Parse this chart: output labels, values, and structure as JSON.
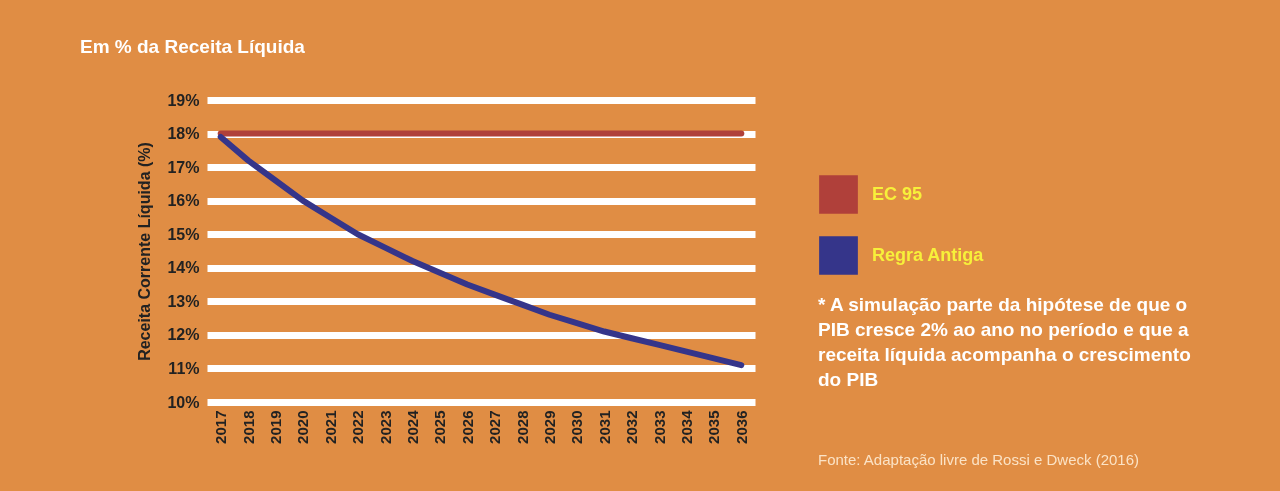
{
  "chart_data": {
    "type": "line",
    "title": "Em % da Receita Líquida",
    "ylabel": "Receita Corrente Líquida (%)",
    "categories": [
      "2017",
      "2018",
      "2019",
      "2020",
      "2021",
      "2022",
      "2023",
      "2024",
      "2025",
      "2026",
      "2027",
      "2028",
      "2029",
      "2030",
      "2031",
      "2032",
      "2033",
      "2034",
      "2035",
      "2036"
    ],
    "series": [
      {
        "name": "EC 95",
        "color": "#b0403a",
        "values": [
          18,
          18,
          18,
          18,
          18,
          18,
          18,
          18,
          18,
          18,
          18,
          18,
          18,
          18,
          18,
          18,
          18,
          18,
          18,
          18
        ]
      },
      {
        "name": "Regra Antiga",
        "color": "#35358a",
        "values": [
          17.9,
          17.2,
          16.6,
          16.0,
          15.5,
          15.0,
          14.6,
          14.2,
          13.85,
          13.5,
          13.2,
          12.9,
          12.6,
          12.35,
          12.1,
          11.9,
          11.7,
          11.5,
          11.3,
          11.1
        ]
      }
    ],
    "ylim": [
      10,
      19
    ],
    "yticks": [
      {
        "value": 10,
        "label": "10%"
      },
      {
        "value": 11,
        "label": "11%"
      },
      {
        "value": 12,
        "label": "12%"
      },
      {
        "value": 13,
        "label": "13%"
      },
      {
        "value": 14,
        "label": "14%"
      },
      {
        "value": 15,
        "label": "15%"
      },
      {
        "value": 16,
        "label": "16%"
      },
      {
        "value": 17,
        "label": "17%"
      },
      {
        "value": 18,
        "label": "18%"
      },
      {
        "value": 19,
        "label": "19%"
      }
    ],
    "grid": "y",
    "legend": "right",
    "marker": "none",
    "line_style": "solid",
    "annotations": [
      "* A simulação parte da hipótese de que o PIB cresce 2% ao ano no período e que a receita líquida acompanha o crescimento do PIB",
      "Fonte: Adaptação livre de Rossi e Dweck (2016)"
    ]
  }
}
